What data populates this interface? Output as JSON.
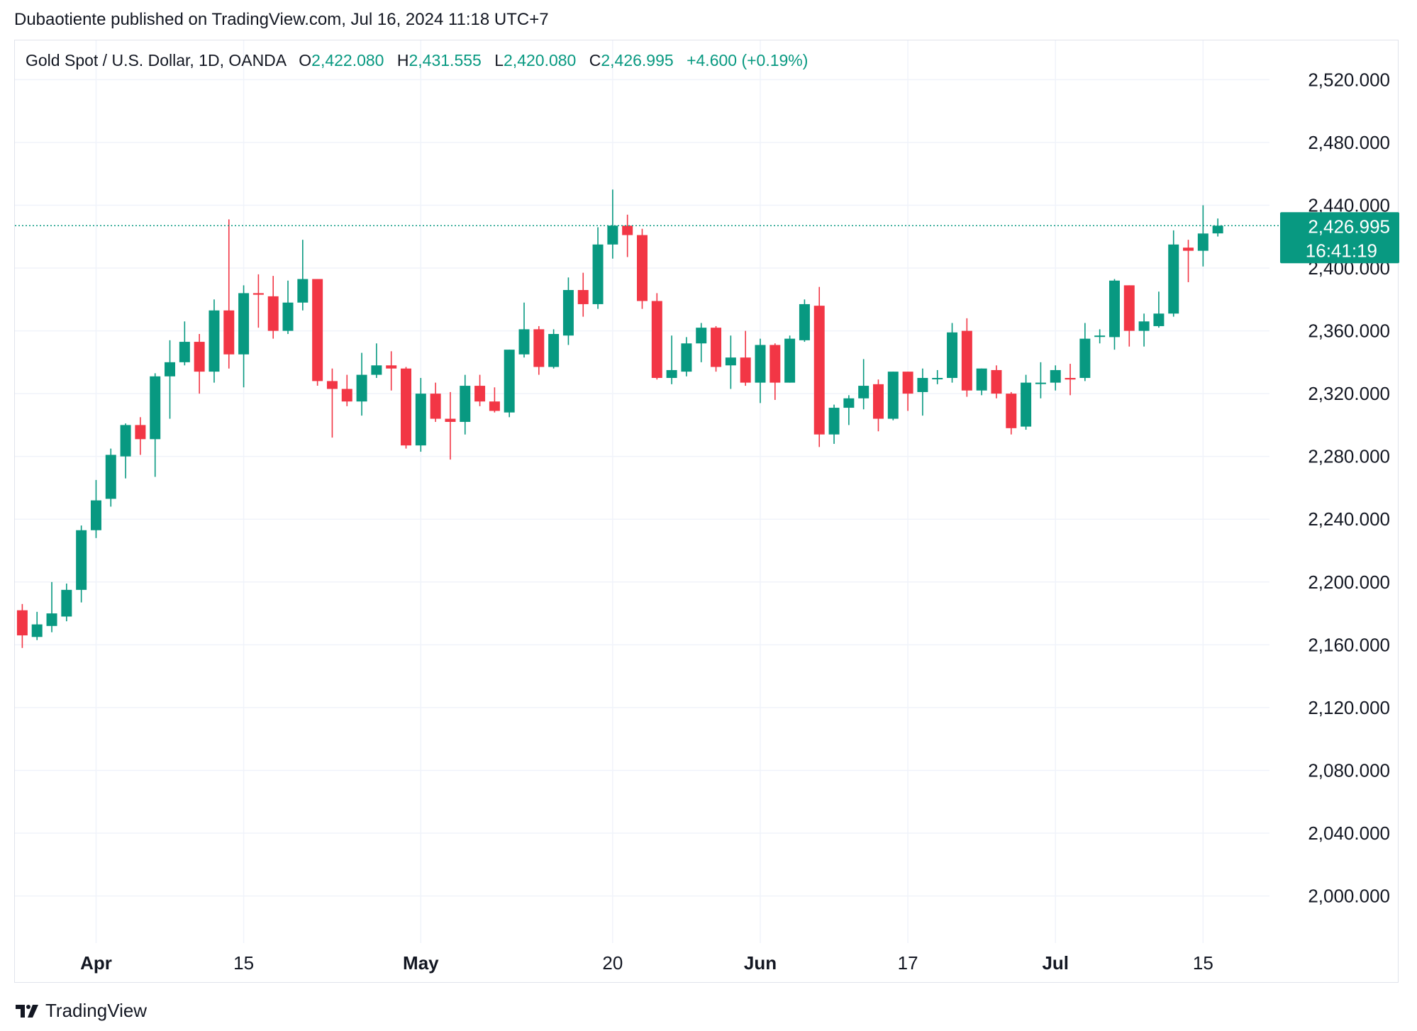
{
  "header": {
    "published_by": "Dubaotiente published on TradingView.com, Jul 16, 2024 11:18 UTC+7"
  },
  "legend": {
    "symbol": "Gold Spot / U.S. Dollar, 1D, OANDA",
    "open_label": "O",
    "open": "2,422.080",
    "high_label": "H",
    "high": "2,431.555",
    "low_label": "L",
    "low": "2,420.080",
    "close_label": "C",
    "close": "2,426.995",
    "change": "+4.600 (+0.19%)"
  },
  "price_badge": {
    "price": "2,426.995",
    "countdown": "16:41:19"
  },
  "footer": {
    "brand": "TradingView"
  },
  "colors": {
    "up": "#089981",
    "down": "#f23645",
    "grid": "#f0f3fa",
    "text": "#131722"
  },
  "chart_data": {
    "type": "candlestick",
    "y_axis_labels": [
      "2,520.000",
      "2,480.000",
      "2,440.000",
      "2,400.000",
      "2,360.000",
      "2,320.000",
      "2,280.000",
      "2,240.000",
      "2,200.000",
      "2,160.000",
      "2,120.000",
      "2,080.000",
      "2,040.000",
      "2,000.000"
    ],
    "y_axis_values": [
      2520,
      2480,
      2440,
      2400,
      2360,
      2320,
      2280,
      2240,
      2200,
      2160,
      2120,
      2080,
      2040,
      2000
    ],
    "ylim": [
      1970,
      2545
    ],
    "x_tick_labels": [
      {
        "label": "Apr",
        "index": 5,
        "bold": true
      },
      {
        "label": "15",
        "index": 15,
        "bold": false
      },
      {
        "label": "May",
        "index": 27,
        "bold": true
      },
      {
        "label": "20",
        "index": 40,
        "bold": false
      },
      {
        "label": "Jun",
        "index": 50,
        "bold": true
      },
      {
        "label": "17",
        "index": 60,
        "bold": false
      },
      {
        "label": "Jul",
        "index": 70,
        "bold": true
      },
      {
        "label": "15",
        "index": 80,
        "bold": false
      }
    ],
    "x_index_range": [
      -0.5,
      84.5
    ],
    "last_price": 2426.995,
    "candles": [
      {
        "o": 2182,
        "h": 2186,
        "l": 2158,
        "c": 2166
      },
      {
        "o": 2165,
        "h": 2181,
        "l": 2163,
        "c": 2173
      },
      {
        "o": 2172,
        "h": 2200,
        "l": 2168,
        "c": 2180
      },
      {
        "o": 2178,
        "h": 2199,
        "l": 2175,
        "c": 2195
      },
      {
        "o": 2195,
        "h": 2236,
        "l": 2187,
        "c": 2233
      },
      {
        "o": 2233,
        "h": 2265,
        "l": 2228,
        "c": 2252
      },
      {
        "o": 2253,
        "h": 2285,
        "l": 2248,
        "c": 2281
      },
      {
        "o": 2280,
        "h": 2301,
        "l": 2266,
        "c": 2300
      },
      {
        "o": 2300,
        "h": 2305,
        "l": 2281,
        "c": 2291
      },
      {
        "o": 2291,
        "h": 2333,
        "l": 2267,
        "c": 2331
      },
      {
        "o": 2331,
        "h": 2354,
        "l": 2304,
        "c": 2340
      },
      {
        "o": 2340,
        "h": 2366,
        "l": 2338,
        "c": 2353
      },
      {
        "o": 2353,
        "h": 2358,
        "l": 2320,
        "c": 2334
      },
      {
        "o": 2334,
        "h": 2380,
        "l": 2327,
        "c": 2373
      },
      {
        "o": 2373,
        "h": 2431,
        "l": 2336,
        "c": 2345
      },
      {
        "o": 2345,
        "h": 2389,
        "l": 2324,
        "c": 2384
      },
      {
        "o": 2384,
        "h": 2396,
        "l": 2362,
        "c": 2383
      },
      {
        "o": 2382,
        "h": 2395,
        "l": 2355,
        "c": 2360
      },
      {
        "o": 2360,
        "h": 2392,
        "l": 2358,
        "c": 2378
      },
      {
        "o": 2378,
        "h": 2418,
        "l": 2373,
        "c": 2393
      },
      {
        "o": 2393,
        "h": 2393,
        "l": 2325,
        "c": 2328
      },
      {
        "o": 2328,
        "h": 2336,
        "l": 2292,
        "c": 2323
      },
      {
        "o": 2323,
        "h": 2332,
        "l": 2312,
        "c": 2315
      },
      {
        "o": 2315,
        "h": 2346,
        "l": 2306,
        "c": 2332
      },
      {
        "o": 2332,
        "h": 2352,
        "l": 2330,
        "c": 2338
      },
      {
        "o": 2338,
        "h": 2347,
        "l": 2322,
        "c": 2336
      },
      {
        "o": 2336,
        "h": 2337,
        "l": 2285,
        "c": 2287
      },
      {
        "o": 2287,
        "h": 2330,
        "l": 2283,
        "c": 2320
      },
      {
        "o": 2320,
        "h": 2327,
        "l": 2302,
        "c": 2304
      },
      {
        "o": 2304,
        "h": 2321,
        "l": 2278,
        "c": 2302
      },
      {
        "o": 2302,
        "h": 2332,
        "l": 2294,
        "c": 2325
      },
      {
        "o": 2325,
        "h": 2332,
        "l": 2312,
        "c": 2315
      },
      {
        "o": 2315,
        "h": 2324,
        "l": 2308,
        "c": 2309
      },
      {
        "o": 2308,
        "h": 2348,
        "l": 2305,
        "c": 2348
      },
      {
        "o": 2345,
        "h": 2378,
        "l": 2343,
        "c": 2361
      },
      {
        "o": 2361,
        "h": 2363,
        "l": 2332,
        "c": 2337
      },
      {
        "o": 2337,
        "h": 2361,
        "l": 2336,
        "c": 2358
      },
      {
        "o": 2357,
        "h": 2394,
        "l": 2351,
        "c": 2386
      },
      {
        "o": 2386,
        "h": 2397,
        "l": 2369,
        "c": 2377
      },
      {
        "o": 2377,
        "h": 2426,
        "l": 2374,
        "c": 2415
      },
      {
        "o": 2415,
        "h": 2450,
        "l": 2406,
        "c": 2427
      },
      {
        "o": 2427,
        "h": 2434,
        "l": 2407,
        "c": 2421
      },
      {
        "o": 2421,
        "h": 2425,
        "l": 2374,
        "c": 2379
      },
      {
        "o": 2379,
        "h": 2384,
        "l": 2329,
        "c": 2330
      },
      {
        "o": 2330,
        "h": 2357,
        "l": 2326,
        "c": 2335
      },
      {
        "o": 2334,
        "h": 2356,
        "l": 2331,
        "c": 2352
      },
      {
        "o": 2352,
        "h": 2365,
        "l": 2340,
        "c": 2362
      },
      {
        "o": 2362,
        "h": 2363,
        "l": 2334,
        "c": 2337
      },
      {
        "o": 2338,
        "h": 2357,
        "l": 2323,
        "c": 2343
      },
      {
        "o": 2343,
        "h": 2360,
        "l": 2325,
        "c": 2327
      },
      {
        "o": 2327,
        "h": 2355,
        "l": 2314,
        "c": 2351
      },
      {
        "o": 2351,
        "h": 2352,
        "l": 2316,
        "c": 2327
      },
      {
        "o": 2327,
        "h": 2357,
        "l": 2327,
        "c": 2355
      },
      {
        "o": 2354,
        "h": 2380,
        "l": 2353,
        "c": 2377
      },
      {
        "o": 2376,
        "h": 2388,
        "l": 2286,
        "c": 2294
      },
      {
        "o": 2294,
        "h": 2313,
        "l": 2288,
        "c": 2311
      },
      {
        "o": 2311,
        "h": 2319,
        "l": 2300,
        "c": 2317
      },
      {
        "o": 2317,
        "h": 2342,
        "l": 2310,
        "c": 2325
      },
      {
        "o": 2326,
        "h": 2329,
        "l": 2296,
        "c": 2304
      },
      {
        "o": 2304,
        "h": 2334,
        "l": 2303,
        "c": 2334
      },
      {
        "o": 2334,
        "h": 2334,
        "l": 2309,
        "c": 2320
      },
      {
        "o": 2321,
        "h": 2336,
        "l": 2306,
        "c": 2330
      },
      {
        "o": 2330,
        "h": 2335,
        "l": 2326,
        "c": 2330
      },
      {
        "o": 2330,
        "h": 2365,
        "l": 2327,
        "c": 2359
      },
      {
        "o": 2360,
        "h": 2368,
        "l": 2318,
        "c": 2322
      },
      {
        "o": 2322,
        "h": 2336,
        "l": 2319,
        "c": 2336
      },
      {
        "o": 2335,
        "h": 2338,
        "l": 2317,
        "c": 2320
      },
      {
        "o": 2320,
        "h": 2321,
        "l": 2294,
        "c": 2298
      },
      {
        "o": 2299,
        "h": 2332,
        "l": 2297,
        "c": 2327
      },
      {
        "o": 2327,
        "h": 2340,
        "l": 2317,
        "c": 2327
      },
      {
        "o": 2327,
        "h": 2338,
        "l": 2322,
        "c": 2335
      },
      {
        "o": 2330,
        "h": 2339,
        "l": 2319,
        "c": 2329
      },
      {
        "o": 2330,
        "h": 2365,
        "l": 2328,
        "c": 2355
      },
      {
        "o": 2357,
        "h": 2361,
        "l": 2352,
        "c": 2357
      },
      {
        "o": 2356,
        "h": 2393,
        "l": 2348,
        "c": 2392
      },
      {
        "o": 2389,
        "h": 2389,
        "l": 2350,
        "c": 2360
      },
      {
        "o": 2360,
        "h": 2371,
        "l": 2350,
        "c": 2366
      },
      {
        "o": 2363,
        "h": 2385,
        "l": 2362,
        "c": 2371
      },
      {
        "o": 2371,
        "h": 2424,
        "l": 2369,
        "c": 2415
      },
      {
        "o": 2413,
        "h": 2418,
        "l": 2391,
        "c": 2411
      },
      {
        "o": 2411,
        "h": 2440,
        "l": 2401,
        "c": 2422
      },
      {
        "o": 2422.08,
        "h": 2431.555,
        "l": 2420.08,
        "c": 2426.995
      }
    ]
  }
}
